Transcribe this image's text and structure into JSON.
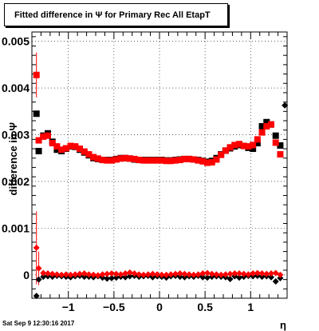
{
  "title": "Fitted difference in Ψ  for Primary Rec All EtapT",
  "timestamp": "Sat Sep  9 12:30:16 2017",
  "chart_data": {
    "type": "scatter",
    "title": "Fitted difference in Ψ  for Primary Rec All EtapT",
    "xlabel": "η",
    "ylabel": "difference in Ψ",
    "xlim": [
      -1.4,
      1.4
    ],
    "ylim": [
      -0.0005,
      0.0052
    ],
    "grid": true,
    "x_ticks": [
      -1,
      -0.5,
      0,
      0.5,
      1
    ],
    "x_tick_labels": [
      "−1",
      "−0.5",
      "0",
      "0.5",
      "1"
    ],
    "y_ticks": [
      0,
      0.001,
      0.002,
      0.003,
      0.004,
      0.005
    ],
    "y_tick_labels": [
      "0",
      "0.001",
      "0.002",
      "0.003",
      "0.004",
      "0.005"
    ],
    "series": [
      {
        "color": "#000000",
        "marker": "square",
        "x": [
          -1.35,
          -1.325,
          -1.275,
          -1.225,
          -1.175,
          -1.125,
          -1.075,
          -1.025,
          -0.975,
          -0.925,
          -0.875,
          -0.825,
          -0.775,
          -0.725,
          -0.675,
          -0.625,
          -0.575,
          -0.525,
          -0.475,
          -0.425,
          -0.375,
          -0.325,
          -0.275,
          -0.225,
          -0.175,
          -0.125,
          -0.075,
          -0.025,
          0.025,
          0.075,
          0.125,
          0.175,
          0.225,
          0.275,
          0.325,
          0.375,
          0.425,
          0.475,
          0.525,
          0.575,
          0.625,
          0.675,
          0.725,
          0.775,
          0.825,
          0.875,
          0.925,
          0.975,
          1.025,
          1.075,
          1.125,
          1.175,
          1.225,
          1.275,
          1.325
        ],
        "y": [
          0.00345,
          0.00265,
          0.00298,
          0.00303,
          0.00285,
          0.00268,
          0.00265,
          0.0027,
          0.00275,
          0.00274,
          0.00268,
          0.00262,
          0.00256,
          0.0025,
          0.00248,
          0.00246,
          0.00246,
          0.00246,
          0.00248,
          0.0025,
          0.0025,
          0.00249,
          0.00247,
          0.00246,
          0.00246,
          0.00246,
          0.00246,
          0.00246,
          0.00246,
          0.00245,
          0.00245,
          0.00246,
          0.00247,
          0.00248,
          0.00248,
          0.00247,
          0.00246,
          0.00244,
          0.00242,
          0.00244,
          0.0025,
          0.00258,
          0.00266,
          0.00271,
          0.00275,
          0.00278,
          0.00276,
          0.00272,
          0.0027,
          0.00282,
          0.00318,
          0.00327,
          0.00322,
          0.00298,
          0.00277
        ]
      },
      {
        "color": "#ff0000",
        "marker": "square",
        "x": [
          -1.35,
          -1.325,
          -1.275,
          -1.225,
          -1.175,
          -1.125,
          -1.075,
          -1.025,
          -0.975,
          -0.925,
          -0.875,
          -0.825,
          -0.775,
          -0.725,
          -0.675,
          -0.625,
          -0.575,
          -0.525,
          -0.475,
          -0.425,
          -0.375,
          -0.325,
          -0.275,
          -0.225,
          -0.175,
          -0.125,
          -0.075,
          -0.025,
          0.025,
          0.075,
          0.125,
          0.175,
          0.225,
          0.275,
          0.325,
          0.375,
          0.425,
          0.475,
          0.525,
          0.575,
          0.625,
          0.675,
          0.725,
          0.775,
          0.825,
          0.875,
          0.925,
          0.975,
          1.025,
          1.075,
          1.125,
          1.175,
          1.225,
          1.275,
          1.325
        ],
        "y": [
          0.00428,
          0.00288,
          0.00296,
          0.00298,
          0.00282,
          0.00275,
          0.00268,
          0.00271,
          0.00276,
          0.00275,
          0.0027,
          0.00264,
          0.00258,
          0.00252,
          0.00249,
          0.00246,
          0.00245,
          0.00245,
          0.00247,
          0.00249,
          0.0025,
          0.00249,
          0.00248,
          0.00246,
          0.00245,
          0.00245,
          0.00245,
          0.00245,
          0.00245,
          0.00244,
          0.00244,
          0.00245,
          0.00246,
          0.00248,
          0.00248,
          0.00247,
          0.00245,
          0.00243,
          0.0024,
          0.00241,
          0.00247,
          0.00257,
          0.00266,
          0.00273,
          0.00278,
          0.0028,
          0.00276,
          0.00275,
          0.00278,
          0.0029,
          0.00305,
          0.00318,
          0.00322,
          0.00283,
          0.00258
        ],
        "err": [
          0.00048,
          0,
          0,
          0,
          0,
          0,
          0,
          0,
          0,
          0,
          0,
          0,
          0,
          0,
          0,
          0,
          0,
          0,
          0,
          0,
          0,
          0,
          0,
          0,
          0,
          0,
          0,
          0,
          0,
          0,
          0,
          0,
          0,
          0,
          0,
          0,
          0,
          0,
          0,
          0,
          0,
          0,
          0,
          0,
          0,
          0,
          0,
          0,
          0,
          0,
          0,
          0,
          0,
          0,
          0
        ]
      },
      {
        "color": "#000000",
        "marker": "diamond",
        "x": [
          -1.35,
          -1.325,
          -1.275,
          -1.225,
          -1.175,
          -1.125,
          -1.075,
          -1.025,
          -0.975,
          -0.925,
          -0.875,
          -0.825,
          -0.775,
          -0.725,
          -0.675,
          -0.625,
          -0.575,
          -0.525,
          -0.475,
          -0.425,
          -0.375,
          -0.325,
          -0.275,
          -0.225,
          -0.175,
          -0.125,
          -0.075,
          -0.025,
          0.025,
          0.075,
          0.125,
          0.175,
          0.225,
          0.275,
          0.325,
          0.375,
          0.425,
          0.475,
          0.525,
          0.575,
          0.625,
          0.675,
          0.725,
          0.775,
          0.825,
          0.875,
          0.925,
          0.975,
          1.025,
          1.075,
          1.125,
          1.175,
          1.225,
          1.275,
          1.325,
          1.375
        ],
        "y": [
          -0.00045,
          -0.0001,
          -4e-05,
          -3e-05,
          -4e-05,
          -2e-05,
          -3e-05,
          -4e-05,
          -5e-05,
          -3e-05,
          -2e-05,
          -4e-05,
          -4e-05,
          -5e-05,
          -3e-05,
          -6e-05,
          -8e-05,
          -7e-05,
          -6e-05,
          -4e-05,
          -5e-05,
          -3e-05,
          -2e-05,
          -4e-05,
          -3e-05,
          -2e-05,
          -5e-05,
          -3e-05,
          -4e-05,
          -6e-05,
          -3e-05,
          -2e-05,
          -4e-05,
          -5e-05,
          -3e-05,
          -4e-05,
          -2e-05,
          -5e-05,
          -6e-05,
          -4e-05,
          -3e-05,
          -4e-05,
          -5e-05,
          -9e-05,
          -3e-05,
          -6e-05,
          -4e-05,
          -2e-05,
          -3e-05,
          -2e-05,
          -4e-05,
          -3e-05,
          -5e-05,
          -0.00014,
          -7e-05,
          0.00363
        ]
      },
      {
        "color": "#ff0000",
        "marker": "diamond",
        "x": [
          -1.35,
          -1.325,
          -1.275,
          -1.225,
          -1.175,
          -1.125,
          -1.075,
          -1.025,
          -0.975,
          -0.925,
          -0.875,
          -0.825,
          -0.775,
          -0.725,
          -0.675,
          -0.625,
          -0.575,
          -0.525,
          -0.475,
          -0.425,
          -0.375,
          -0.325,
          -0.275,
          -0.225,
          -0.175,
          -0.125,
          -0.075,
          -0.025,
          0.025,
          0.075,
          0.125,
          0.175,
          0.225,
          0.275,
          0.325,
          0.375,
          0.425,
          0.475,
          0.525,
          0.575,
          0.625,
          0.675,
          0.725,
          0.775,
          0.825,
          0.875,
          0.925,
          0.975,
          1.025,
          1.075,
          1.125,
          1.175,
          1.225,
          1.275,
          1.325
        ],
        "y": [
          0.00058,
          0.00014,
          4e-05,
          3e-05,
          2e-05,
          1e-05,
          0.0,
          1e-05,
          0.0,
          1e-05,
          2e-05,
          3e-05,
          1e-05,
          0.0,
          -1e-05,
          1e-05,
          2e-05,
          3e-05,
          2e-05,
          1e-05,
          3e-05,
          5e-05,
          3e-05,
          1e-05,
          0.0,
          1e-05,
          2e-05,
          1e-05,
          0.0,
          0.0,
          1e-05,
          2e-05,
          3e-05,
          2e-05,
          1e-05,
          0.0,
          1e-05,
          3e-05,
          4e-05,
          2e-05,
          1e-05,
          0.0,
          1e-05,
          2e-05,
          3e-05,
          3e-05,
          2e-05,
          1e-05,
          3e-05,
          4e-05,
          3e-05,
          2e-05,
          3e-05,
          4e-05,
          0.0
        ],
        "err": [
          0.00078,
          0.00036,
          0,
          0,
          0,
          0,
          0,
          0,
          0,
          0,
          0,
          0,
          0,
          0,
          0,
          0,
          0,
          0,
          0,
          0,
          0,
          0,
          0,
          0,
          0,
          0,
          0,
          0,
          0,
          0,
          0,
          0,
          0,
          0,
          0,
          0,
          0,
          0,
          0,
          0,
          0,
          0,
          0,
          0,
          0,
          0,
          0,
          0,
          0,
          0,
          0,
          0,
          0,
          0,
          0
        ]
      }
    ]
  }
}
